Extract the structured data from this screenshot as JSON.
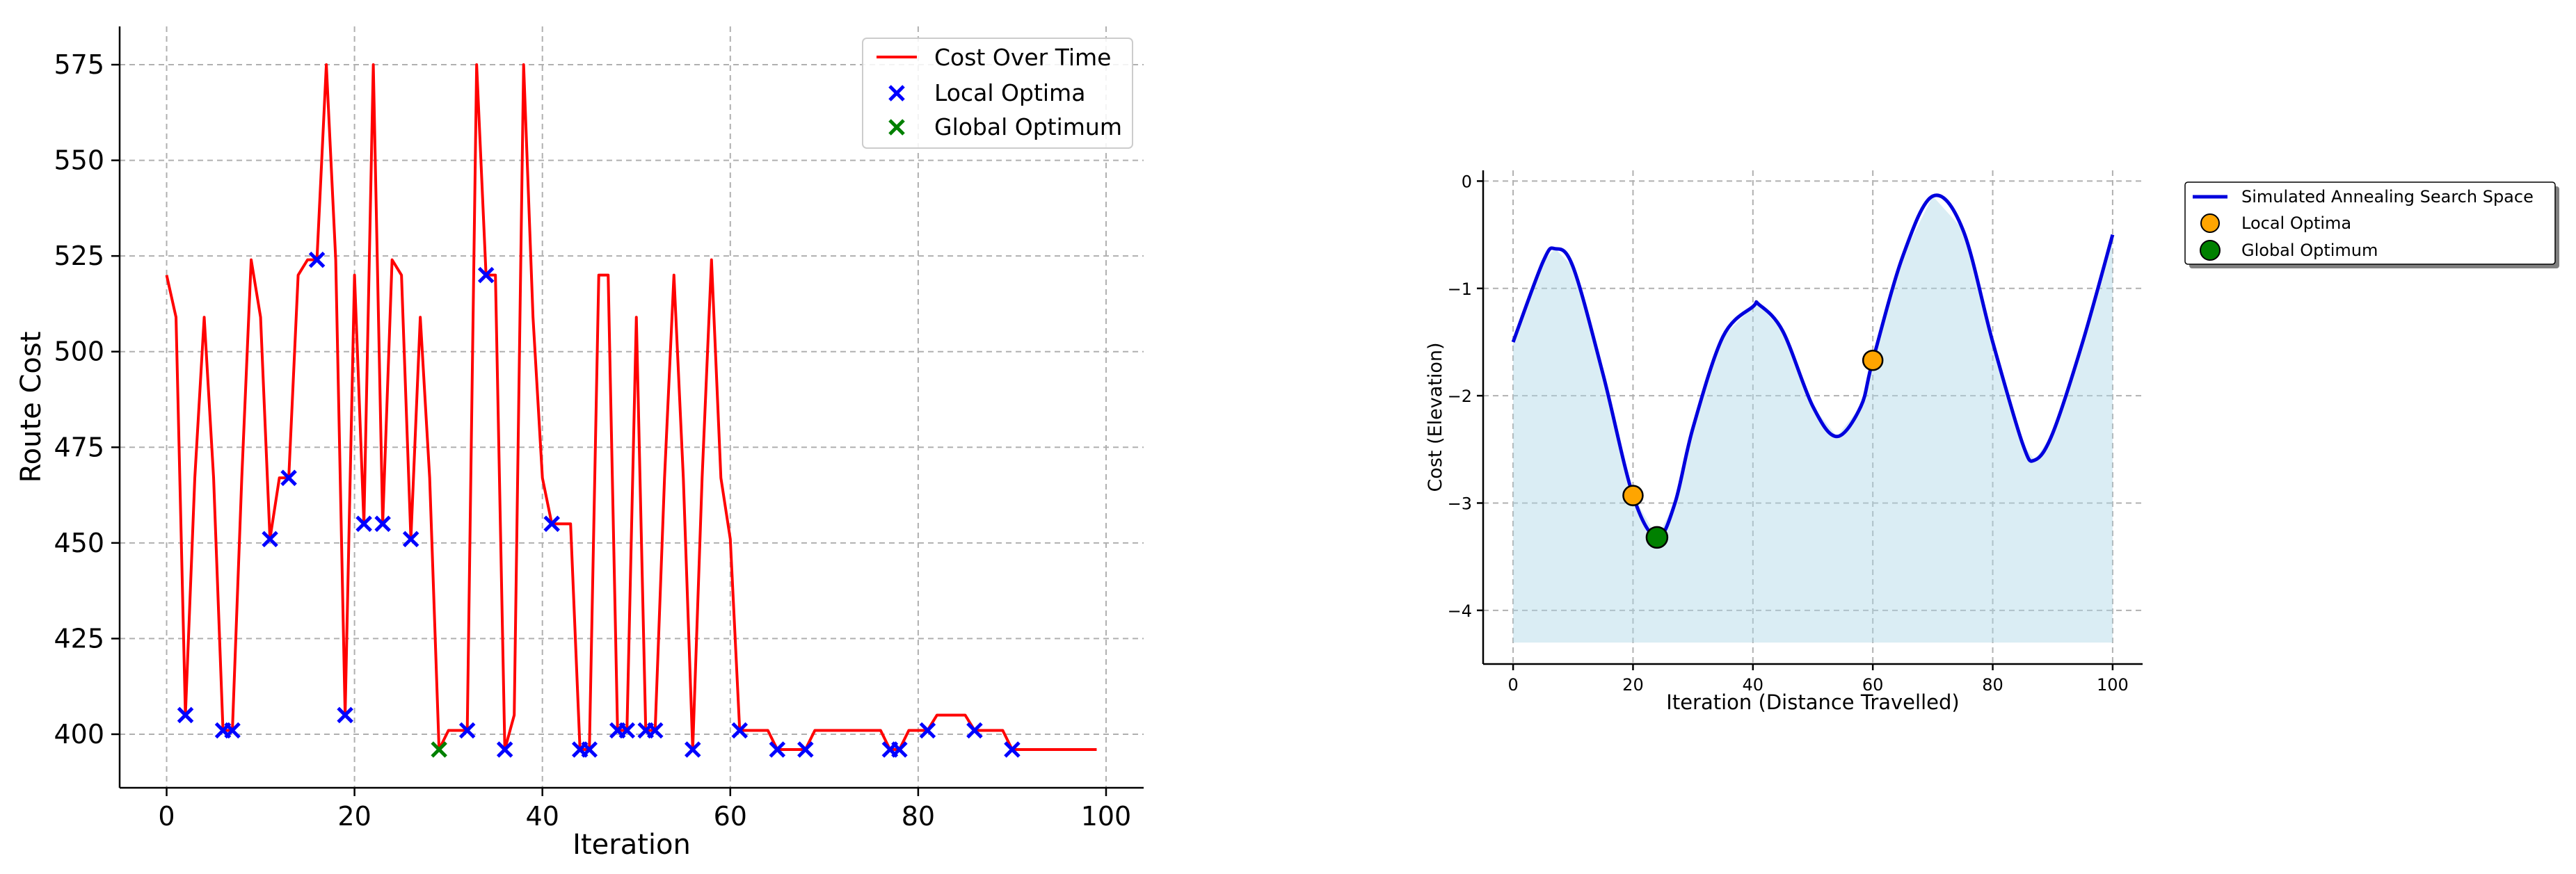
{
  "colors": {
    "cost_line": "#ff0000",
    "local_marker": "#0000ff",
    "global_marker": "#008000",
    "curve": "#0000dd",
    "fill": "#add8e6",
    "local_dot": "#ffa500",
    "global_dot": "#008000"
  },
  "chart_data": [
    {
      "type": "line",
      "title": "",
      "xlabel": "Iteration",
      "ylabel": "Route Cost",
      "xlim": [
        -5,
        104
      ],
      "ylim": [
        386,
        585
      ],
      "xticks": [
        0,
        20,
        40,
        60,
        80,
        100
      ],
      "yticks": [
        400,
        425,
        450,
        475,
        500,
        525,
        550,
        575
      ],
      "grid": true,
      "legend_position": "upper-right",
      "legend": [
        "Cost Over Time",
        "Local Optima",
        "Global Optimum"
      ],
      "series": [
        {
          "name": "Cost Over Time",
          "x": [
            0,
            1,
            2,
            3,
            4,
            5,
            6,
            7,
            8,
            9,
            10,
            11,
            12,
            13,
            14,
            15,
            16,
            17,
            18,
            19,
            20,
            21,
            22,
            23,
            24,
            25,
            26,
            27,
            28,
            29,
            30,
            31,
            32,
            33,
            34,
            35,
            36,
            37,
            38,
            39,
            40,
            41,
            42,
            43,
            44,
            45,
            46,
            47,
            48,
            49,
            50,
            51,
            52,
            53,
            54,
            55,
            56,
            57,
            58,
            59,
            60,
            61,
            62,
            63,
            64,
            65,
            66,
            67,
            68,
            69,
            70,
            71,
            72,
            73,
            74,
            75,
            76,
            77,
            78,
            79,
            80,
            81,
            82,
            83,
            84,
            85,
            86,
            87,
            88,
            89,
            90,
            91,
            92,
            93,
            94,
            95,
            96,
            97,
            98,
            99
          ],
          "y": [
            520,
            509,
            405,
            467,
            509,
            467,
            401,
            401,
            467,
            524,
            509,
            451,
            467,
            467,
            520,
            524,
            524,
            575,
            524,
            405,
            520,
            455,
            575,
            455,
            524,
            520,
            451,
            509,
            467,
            396,
            401,
            401,
            401,
            575,
            520,
            520,
            396,
            405,
            575,
            509,
            467,
            455,
            455,
            455,
            396,
            396,
            520,
            520,
            401,
            401,
            509,
            401,
            401,
            467,
            520,
            467,
            396,
            467,
            524,
            467,
            451,
            401,
            401,
            401,
            401,
            396,
            396,
            396,
            396,
            401,
            401,
            401,
            401,
            401,
            401,
            401,
            401,
            396,
            396,
            401,
            401,
            401,
            405,
            405,
            405,
            405,
            401,
            401,
            401,
            401,
            396,
            396,
            396,
            396,
            396,
            396,
            396,
            396,
            396,
            396
          ]
        },
        {
          "name": "Local Optima",
          "x": [
            2,
            6,
            7,
            11,
            13,
            16,
            19,
            21,
            23,
            26,
            32,
            34,
            36,
            41,
            44,
            45,
            48,
            49,
            51,
            52,
            56,
            61,
            65,
            68,
            77,
            78,
            81,
            86,
            90
          ],
          "y": [
            405,
            401,
            401,
            451,
            467,
            524,
            405,
            455,
            455,
            451,
            401,
            520,
            396,
            455,
            396,
            396,
            401,
            401,
            401,
            401,
            396,
            401,
            396,
            396,
            396,
            396,
            401,
            401,
            396
          ]
        },
        {
          "name": "Global Optimum",
          "x": [
            29
          ],
          "y": [
            396
          ]
        }
      ]
    },
    {
      "type": "area",
      "title": "",
      "xlabel": "Iteration (Distance Travelled)",
      "ylabel": "Cost (Elevation)",
      "xlim": [
        -5,
        105
      ],
      "ylim": [
        -4.5,
        0.1
      ],
      "xticks": [
        0,
        20,
        40,
        60,
        80,
        100
      ],
      "yticks": [
        0,
        -1,
        -2,
        -3,
        -4
      ],
      "grid": true,
      "legend_position": "outside-right",
      "legend": [
        "Simulated Annealing Search Space",
        "Local Optima",
        "Global Optimum"
      ],
      "fill_baseline": -4.3,
      "series": [
        {
          "name": "Simulated Annealing Search Space",
          "x": [
            0,
            5,
            7,
            10,
            15,
            20,
            24,
            27,
            30,
            35,
            40,
            41,
            45,
            50,
            54,
            58,
            60,
            65,
            70,
            75,
            80,
            85,
            87,
            90,
            95,
            100
          ],
          "y": [
            -1.5,
            -0.75,
            -0.63,
            -0.8,
            -1.8,
            -2.93,
            -3.32,
            -3.0,
            -2.3,
            -1.45,
            -1.17,
            -1.15,
            -1.4,
            -2.1,
            -2.38,
            -2.1,
            -1.67,
            -0.7,
            -0.14,
            -0.45,
            -1.5,
            -2.45,
            -2.6,
            -2.35,
            -1.5,
            -0.5
          ]
        },
        {
          "name": "Local Optima",
          "x": [
            20,
            60
          ],
          "y": [
            -2.93,
            -1.67
          ]
        },
        {
          "name": "Global Optimum",
          "x": [
            24
          ],
          "y": [
            -3.32
          ]
        }
      ]
    }
  ]
}
